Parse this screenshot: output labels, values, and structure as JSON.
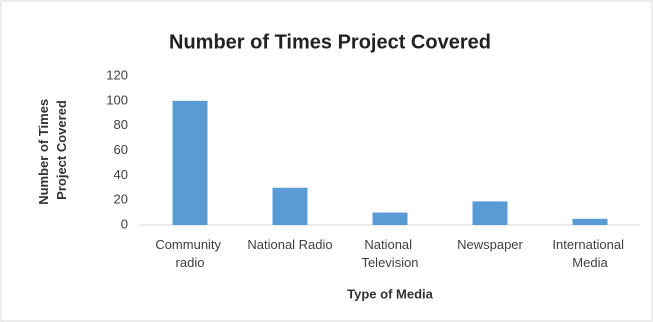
{
  "chart_data": {
    "type": "bar",
    "title": "Number of Times Project Covered",
    "x_label": "Type of Media",
    "y_label": "Number of Times Project Covered",
    "categories": [
      "Community radio",
      "National Radio",
      "National Television",
      "Newspaper",
      "International Media"
    ],
    "values": [
      100,
      30,
      10,
      19,
      5
    ],
    "color": "#5b9bd5",
    "ylim": [
      0,
      120
    ],
    "yticks": [
      0,
      20,
      40,
      60,
      80,
      100,
      120
    ],
    "grid": false
  }
}
